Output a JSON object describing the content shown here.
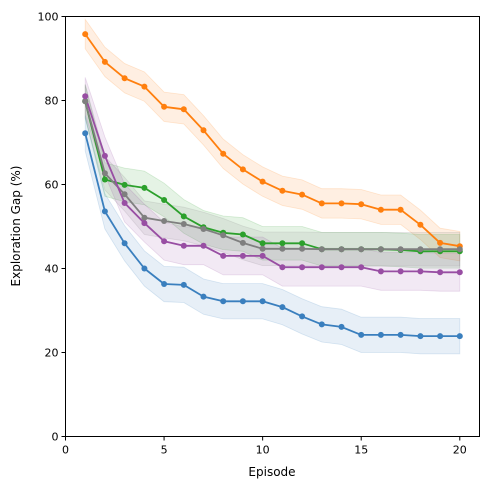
{
  "chart_data": {
    "type": "line",
    "title": "",
    "xlabel": "Episode",
    "ylabel": "Exploration Gap (%)",
    "xlim": [
      0,
      21
    ],
    "ylim": [
      0,
      100
    ],
    "xticks": [
      0,
      5,
      10,
      15,
      20
    ],
    "yticks": [
      0,
      20,
      40,
      60,
      80,
      100
    ],
    "grid": false,
    "legend": "none",
    "x": [
      1,
      2,
      3,
      4,
      5,
      6,
      7,
      8,
      9,
      10,
      11,
      12,
      13,
      14,
      15,
      16,
      17,
      18,
      19,
      20
    ],
    "series": [
      {
        "color": "#ff7f0e",
        "values": [
          95.8,
          89.2,
          85.3,
          83.3,
          78.5,
          77.9,
          72.9,
          67.3,
          63.6,
          60.7,
          58.5,
          57.6,
          55.5,
          55.5,
          55.3,
          54.0,
          54.0,
          50.4,
          46.1,
          45.3
        ],
        "band": 3.5
      },
      {
        "color": "#2ca02c",
        "values": [
          79.8,
          61.2,
          59.9,
          59.2,
          56.3,
          52.4,
          49.8,
          48.5,
          48.1,
          46.0,
          46.0,
          46.0,
          44.6,
          44.6,
          44.6,
          44.6,
          44.4,
          44.1,
          44.1,
          44.1
        ],
        "band": 4.0
      },
      {
        "color": "#7f7f7f",
        "values": [
          79.8,
          62.7,
          57.7,
          52.1,
          51.3,
          50.6,
          49.4,
          47.9,
          46.1,
          44.7,
          44.7,
          44.7,
          44.6,
          44.6,
          44.6,
          44.6,
          44.6,
          44.6,
          44.6,
          44.6
        ],
        "band": 4.0
      },
      {
        "color": "#984ea3",
        "values": [
          81.0,
          66.8,
          55.6,
          50.8,
          46.5,
          45.4,
          45.4,
          43.0,
          43.0,
          43.0,
          40.3,
          40.3,
          40.3,
          40.3,
          40.3,
          39.3,
          39.3,
          39.3,
          39.1,
          39.1
        ],
        "band": 4.5
      },
      {
        "color": "#3a7fbe",
        "values": [
          72.2,
          53.6,
          46.0,
          40.0,
          36.3,
          36.1,
          33.3,
          32.2,
          32.2,
          32.2,
          30.8,
          28.6,
          26.7,
          26.1,
          24.2,
          24.2,
          24.2,
          23.9,
          23.9,
          23.9
        ],
        "band": 4.2
      }
    ]
  }
}
